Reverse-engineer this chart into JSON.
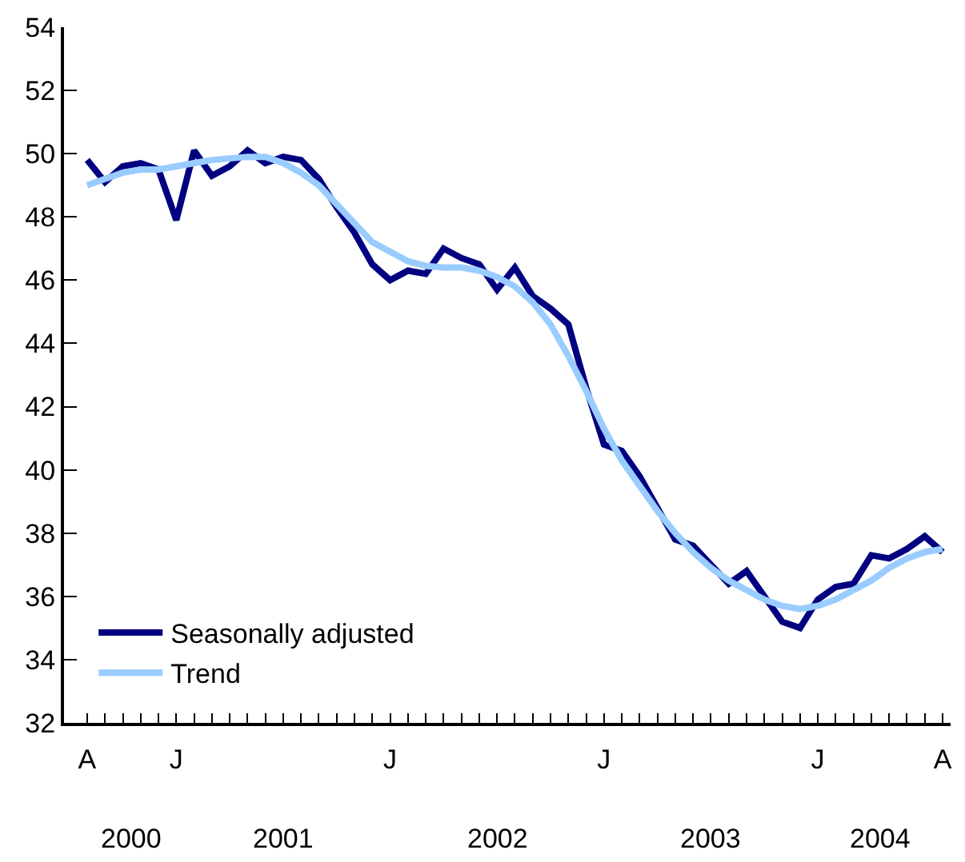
{
  "chart_data": {
    "type": "line",
    "categories": [
      "A",
      null,
      null,
      null,
      null,
      "J",
      null,
      null,
      null,
      null,
      null,
      null,
      null,
      null,
      null,
      null,
      null,
      "J",
      null,
      null,
      null,
      null,
      null,
      null,
      null,
      null,
      null,
      null,
      null,
      "J",
      null,
      null,
      null,
      null,
      null,
      null,
      null,
      null,
      null,
      null,
      null,
      "J",
      null,
      null,
      null,
      null,
      null,
      null,
      "A"
    ],
    "series": [
      {
        "name": "Seasonally adjusted",
        "color": "#000080",
        "values": [
          49.8,
          49.1,
          49.6,
          49.7,
          49.5,
          47.9,
          50.1,
          49.3,
          49.6,
          50.1,
          49.7,
          49.9,
          49.8,
          49.2,
          48.3,
          47.5,
          46.5,
          46.0,
          46.3,
          46.2,
          47.0,
          46.7,
          46.5,
          45.7,
          46.4,
          45.5,
          45.1,
          44.6,
          42.6,
          40.8,
          40.6,
          39.8,
          38.8,
          37.8,
          37.6,
          37.0,
          36.4,
          36.8,
          36.0,
          35.2,
          35.0,
          35.9,
          36.3,
          36.4,
          37.3,
          37.2,
          37.5,
          37.9,
          37.4
        ]
      },
      {
        "name": "Trend",
        "color": "#99ccff",
        "values": [
          49.0,
          49.2,
          49.4,
          49.5,
          49.5,
          49.6,
          49.7,
          49.8,
          49.85,
          49.9,
          49.9,
          49.7,
          49.4,
          49.0,
          48.4,
          47.8,
          47.2,
          46.9,
          46.6,
          46.45,
          46.4,
          46.4,
          46.3,
          46.1,
          45.8,
          45.3,
          44.6,
          43.6,
          42.5,
          41.3,
          40.3,
          39.5,
          38.7,
          38.0,
          37.4,
          36.9,
          36.5,
          36.2,
          35.9,
          35.7,
          35.6,
          35.7,
          35.9,
          36.2,
          36.5,
          36.9,
          37.2,
          37.4,
          37.5
        ]
      }
    ],
    "ylim": [
      32,
      54
    ],
    "yticks": [
      32,
      34,
      36,
      38,
      40,
      42,
      44,
      46,
      48,
      50,
      52,
      54
    ],
    "annotations": [
      "2000",
      "2001",
      "2002",
      "2003",
      "2004"
    ],
    "legend": "bottom left"
  }
}
